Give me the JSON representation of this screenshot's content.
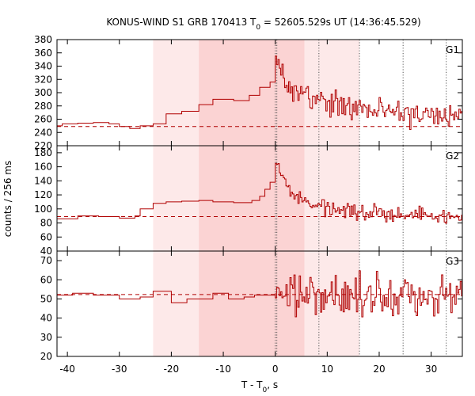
{
  "chart_data": {
    "type": "line",
    "title": {
      "prefix": "KONUS-WIND S1 GRB 170413 T",
      "sub": "0",
      "suffix": " = 52605.529s UT (14:36:45.529)"
    },
    "xlabel": {
      "prefix": "T - T",
      "sub": "0",
      "suffix": ", s"
    },
    "ylabel": "counts / 256 ms",
    "xlim": [
      -42,
      36
    ],
    "xticks": [
      -40,
      -30,
      -20,
      -10,
      0,
      10,
      20,
      30
    ],
    "shaded_intervals": [
      {
        "from": -23.5,
        "to": 5.6,
        "shade": "light"
      },
      {
        "from": -14.7,
        "to": 16.2,
        "shade": "light"
      },
      {
        "from": -14.7,
        "to": 5.6,
        "shade": "medium"
      }
    ],
    "vertical_lines": [
      {
        "x": 0,
        "style": "dotted"
      },
      {
        "x": 0.3,
        "style": "dotted"
      },
      {
        "x": 8.4,
        "style": "dotted"
      },
      {
        "x": 16.2,
        "style": "dotted"
      },
      {
        "x": 24.6,
        "style": "dotted"
      },
      {
        "x": 32.9,
        "style": "dotted"
      }
    ],
    "panels": [
      {
        "label": "G1",
        "ylim": [
          220,
          380
        ],
        "yticks": [
          220,
          240,
          260,
          280,
          300,
          320,
          340,
          360,
          380
        ],
        "background_level": 249,
        "segments": [
          {
            "x": [
              -42,
              -41,
              -38,
              -35,
              -32,
              -30,
              -28,
              -26,
              -23.5,
              -21,
              -18,
              -14.7,
              -12,
              -8,
              -5,
              -3,
              -1,
              0
            ],
            "y": [
              250,
              253,
              254,
              255,
              253,
              249,
              246,
              250,
              253,
              268,
              272,
              282,
              290,
              288,
              296,
              308,
              316,
              322
            ]
          }
        ],
        "noise": {
          "from": 0,
          "to": 36,
          "step": 0.256,
          "seed": 1,
          "envelope": [
            [
              0,
              358
            ],
            [
              1,
              332
            ],
            [
              2,
              315
            ],
            [
              4,
              300
            ],
            [
              6,
              292
            ],
            [
              9,
              285
            ],
            [
              14,
              278
            ],
            [
              20,
              273
            ],
            [
              28,
              268
            ],
            [
              36,
              264
            ]
          ],
          "amp": [
            [
              0,
              8
            ],
            [
              1,
              14
            ],
            [
              6,
              18
            ],
            [
              36,
              14
            ]
          ]
        }
      },
      {
        "label": "G2",
        "ylim": [
          40,
          190
        ],
        "yticks": [
          40,
          60,
          80,
          100,
          120,
          140,
          160,
          180
        ],
        "background_level": 89,
        "segments": [
          {
            "x": [
              -42,
              -38,
              -34,
              -30,
              -27,
              -26,
              -23.5,
              -21,
              -18,
              -14.7,
              -12,
              -8,
              -4.5,
              -3,
              -2,
              -1,
              0
            ],
            "y": [
              86,
              90,
              89,
              87,
              90,
              100,
              108,
              110,
              111,
              112,
              110,
              109,
              112,
              118,
              128,
              138,
              150
            ]
          }
        ],
        "noise": {
          "from": 0,
          "to": 36,
          "step": 0.256,
          "seed": 7,
          "envelope": [
            [
              0,
              165
            ],
            [
              1,
              150
            ],
            [
              2.5,
              125
            ],
            [
              5,
              112
            ],
            [
              9,
              104
            ],
            [
              14,
              98
            ],
            [
              20,
              93
            ],
            [
              28,
              90
            ],
            [
              36,
              89
            ]
          ],
          "amp": [
            [
              0,
              6
            ],
            [
              1,
              9
            ],
            [
              6,
              10
            ],
            [
              36,
              8
            ]
          ]
        }
      },
      {
        "label": "G3",
        "ylim": [
          20,
          75
        ],
        "yticks": [
          20,
          30,
          40,
          50,
          60,
          70
        ],
        "background_level": 52.3,
        "segments": [
          {
            "x": [
              -42,
              -39,
              -35,
              -30,
              -26,
              -23.5,
              -20,
              -17,
              -14.7,
              -12,
              -9,
              -6,
              -4,
              -1,
              0
            ],
            "y": [
              52,
              53,
              52,
              50,
              51,
              54,
              48,
              50,
              50,
              53,
              50,
              51,
              52,
              52,
              53
            ]
          }
        ],
        "noise": {
          "from": 0,
          "to": 36,
          "step": 0.256,
          "seed": 13,
          "envelope": [
            [
              0,
              54
            ],
            [
              3,
              55
            ],
            [
              6,
              53
            ],
            [
              10,
              52
            ],
            [
              20,
              52
            ],
            [
              36,
              52
            ]
          ],
          "amp": [
            [
              0,
              4
            ],
            [
              2,
              9
            ],
            [
              36,
              9
            ]
          ]
        }
      }
    ]
  },
  "colors": {
    "curve": "#b00000",
    "background_level": "#b00000",
    "shade_light": "#fde9e9",
    "shade_medium": "#fbd3d3",
    "axis": "#000000",
    "vline": "#555555"
  }
}
